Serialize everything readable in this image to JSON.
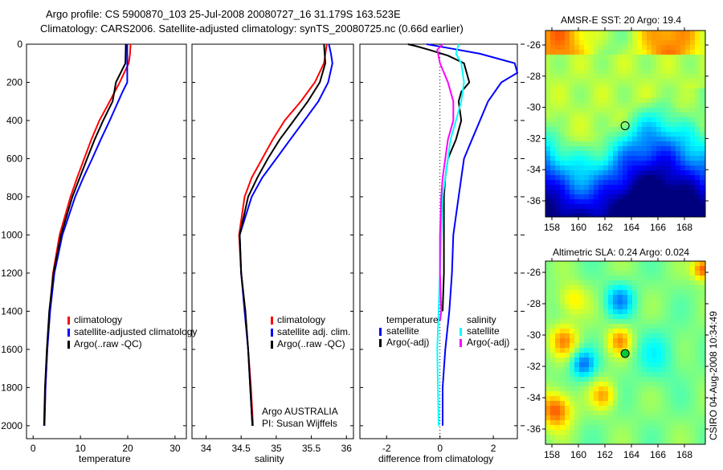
{
  "title_line1": "Argo profile: CS 5900870_103 25-Jul-2008 20080727_16 31.179S 163.523E",
  "title_line2": "Climatology: CARS2006. Satellite-adjusted climatology: synTS_20080725.nc (0.66d earlier)",
  "footer_stamp": "CSIRO 04-Aug-2008 10:34:49",
  "colors": {
    "climatology": "#ff0000",
    "satellite": "#0000ff",
    "argo": "#000000",
    "sal_satellite": "#00ffff",
    "sal_argo": "#ff00ff"
  },
  "chart_data": [
    {
      "type": "line",
      "xlabel": "temperature",
      "ylabel": "",
      "xlim": [
        -1.4,
        32.4
      ],
      "ylim": [
        2068,
        0
      ],
      "xticks": [
        "0",
        "10",
        "20",
        "30"
      ],
      "yticks": [
        "0",
        "200",
        "400",
        "600",
        "800",
        "1000",
        "1200",
        "1400",
        "1600",
        "1800",
        "2000"
      ],
      "legend": [
        "climatology",
        "satellite-adjusted climatology",
        "Argo(..raw -QC)"
      ],
      "legend_position": "bottom-center",
      "series": [
        {
          "name": "climatology",
          "depth": [
            0,
            50,
            100,
            200,
            300,
            400,
            500,
            600,
            700,
            800,
            1000,
            1200,
            1400,
            1600,
            1800,
            2000
          ],
          "values": [
            20.6,
            20.5,
            20.2,
            18.3,
            16.2,
            14.0,
            12.3,
            10.8,
            9.3,
            7.9,
            5.6,
            4.2,
            3.5,
            3.0,
            2.6,
            2.4
          ]
        },
        {
          "name": "satellite-adjusted climatology",
          "depth": [
            0,
            100,
            200,
            250,
            300,
            400,
            500,
            600,
            700,
            800,
            1000,
            1200,
            1400,
            1600,
            1800,
            2000
          ],
          "values": [
            19.9,
            19.9,
            19.9,
            18.9,
            18.0,
            16.2,
            14.3,
            12.5,
            10.6,
            8.9,
            6.2,
            4.5,
            3.6,
            3.0,
            2.6,
            2.4
          ]
        },
        {
          "name": "Argo(..raw -QC)",
          "depth": [
            0,
            100,
            200,
            300,
            400,
            500,
            600,
            800,
            1000,
            1200,
            1400,
            1600,
            1800,
            2000
          ],
          "values": [
            19.6,
            19.5,
            17.5,
            16.8,
            14.8,
            13.0,
            11.4,
            8.3,
            5.9,
            4.3,
            3.4,
            2.9,
            2.5,
            2.3
          ]
        }
      ]
    },
    {
      "type": "line",
      "xlabel": "salinity",
      "xlim": [
        33.8,
        36.1
      ],
      "ylim": [
        2068,
        0
      ],
      "xticks": [
        "34",
        "34.5",
        "35",
        "35.5",
        "36"
      ],
      "legend": [
        "climatology",
        "satellite adj. clim.",
        "Argo(..raw -QC)"
      ],
      "legend_position": "bottom-center",
      "annotation": [
        "Argo AUSTRALIA",
        "PI: Susan Wijffels"
      ],
      "series": [
        {
          "name": "climatology",
          "depth": [
            0,
            100,
            200,
            300,
            400,
            500,
            600,
            700,
            800,
            1000,
            1200,
            1400,
            1600,
            1800,
            2000
          ],
          "values": [
            35.72,
            35.68,
            35.55,
            35.35,
            35.12,
            34.95,
            34.8,
            34.65,
            34.55,
            34.47,
            34.5,
            34.56,
            34.6,
            34.64,
            34.67
          ]
        },
        {
          "name": "satellite adj. clim.",
          "depth": [
            0,
            50,
            100,
            200,
            300,
            400,
            500,
            600,
            700,
            800,
            1000,
            1200,
            1400,
            1600,
            1800,
            2000
          ],
          "values": [
            35.75,
            35.78,
            35.8,
            35.74,
            35.6,
            35.4,
            35.2,
            35.0,
            34.8,
            34.65,
            34.48,
            34.5,
            34.55,
            34.6,
            34.63,
            34.66
          ]
        },
        {
          "name": "Argo(..raw -QC)",
          "depth": [
            0,
            100,
            200,
            300,
            400,
            500,
            600,
            700,
            800,
            1000,
            1200,
            1400,
            1600,
            1800,
            2000
          ],
          "values": [
            35.68,
            35.7,
            35.62,
            35.45,
            35.25,
            35.05,
            34.88,
            34.73,
            34.6,
            34.48,
            34.5,
            34.56,
            34.6,
            34.63,
            34.66
          ]
        }
      ]
    },
    {
      "type": "line",
      "xlabel": "difference from climatology",
      "xlim": [
        -3,
        2.9
      ],
      "ylim": [
        2068,
        0
      ],
      "xticks": [
        "-2",
        "0",
        "2"
      ],
      "legend_groups": [
        {
          "title": "temperature",
          "items": [
            "satellite",
            "Argo(-adj)"
          ]
        },
        {
          "title": "salinity",
          "items": [
            "satellite",
            "Argo(-adj)"
          ]
        }
      ],
      "legend_position": "bottom-center",
      "series": [
        {
          "name": "temperature satellite",
          "depth": [
            0,
            20,
            50,
            100,
            150,
            200,
            300,
            400,
            500,
            600,
            800,
            1000,
            1200,
            1400,
            1600,
            1800,
            2000
          ],
          "values": [
            -0.5,
            0.3,
            1.5,
            2.8,
            2.9,
            2.3,
            1.8,
            1.5,
            1.2,
            0.9,
            0.7,
            0.5,
            0.45,
            0.35,
            0.2,
            0.1,
            0.1
          ]
        },
        {
          "name": "temperature Argo(-adj)",
          "depth": [
            0,
            10,
            30,
            60,
            100,
            150,
            200,
            250,
            300,
            400,
            500,
            600,
            700,
            800,
            1000,
            1200,
            1400
          ],
          "values": [
            -1.2,
            -0.9,
            -0.4,
            0.3,
            0.9,
            1.0,
            1.1,
            0.8,
            0.7,
            0.8,
            0.6,
            0.3,
            0.2,
            0.15,
            0.15,
            0.15,
            0.1
          ]
        },
        {
          "name": "salinity satellite",
          "depth": [
            0,
            50,
            100,
            200,
            300,
            400,
            500,
            600,
            800,
            1000,
            1200,
            1400,
            1600,
            2000
          ],
          "values": [
            0.7,
            0.6,
            0.8,
            0.9,
            0.8,
            0.6,
            0.4,
            0.3,
            0.1,
            0.05,
            0,
            -0.05,
            -0.1,
            -0.05
          ]
        },
        {
          "name": "salinity Argo(-adj)",
          "depth": [
            0,
            30,
            100,
            200,
            300,
            400,
            500,
            600,
            700,
            800,
            1000,
            1200,
            1400,
            1450
          ],
          "values": [
            0.1,
            -0.1,
            0,
            0.3,
            0.5,
            0.5,
            0.3,
            0.2,
            0.1,
            0.05,
            0,
            0,
            0.05,
            0
          ]
        }
      ]
    },
    {
      "type": "heatmap",
      "title": "AMSR-E SST: 20 Argo: 19.4",
      "xticks": [
        "158",
        "160",
        "162",
        "164",
        "166",
        "168"
      ],
      "yticks": [
        "-26",
        "-28",
        "-30",
        "-32",
        "-34",
        "-36"
      ],
      "marker": {
        "lon": 163.523,
        "lat": -31.179
      }
    },
    {
      "type": "heatmap",
      "title": "Altimetric SLA: 0.24 Argo: 0.024",
      "xticks": [
        "158",
        "160",
        "162",
        "164",
        "166",
        "168"
      ],
      "yticks": [
        "-26",
        "-28",
        "-30",
        "-32",
        "-34",
        "-36"
      ],
      "marker": {
        "lon": 163.523,
        "lat": -31.179
      }
    }
  ]
}
